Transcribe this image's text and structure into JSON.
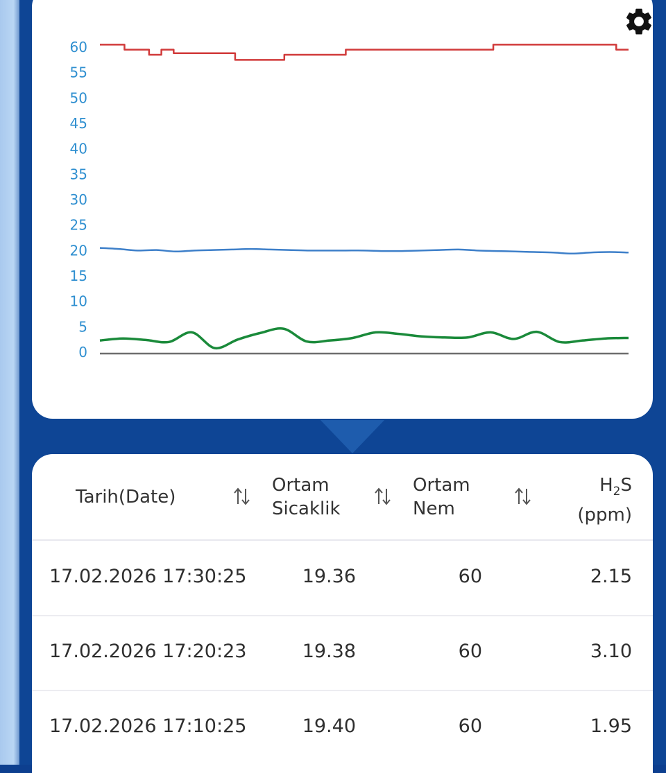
{
  "chart_data": {
    "type": "line",
    "yticks": [
      "60",
      "55",
      "50",
      "45",
      "40",
      "35",
      "30",
      "25",
      "20",
      "15",
      "10",
      "5",
      "0"
    ],
    "ylim": [
      0,
      60
    ],
    "grid": false,
    "series": [
      {
        "color": "#d13a3a",
        "values": [
          60.5,
          60.5,
          59.5,
          59.5,
          58.5,
          59.5,
          58.8,
          58.8,
          58.8,
          58.8,
          58.8,
          57.5,
          57.5,
          57.5,
          57.5,
          58.5,
          58.5,
          58.5,
          58.5,
          58.5,
          59.5,
          59.5,
          59.5,
          59.5,
          59.5,
          59.5,
          59.5,
          59.5,
          59.5,
          59.5,
          59.5,
          59.5,
          60.5,
          60.5,
          60.5,
          60.5,
          60.5,
          60.5,
          60.5,
          60.5,
          60.5,
          60.5,
          59.5,
          59.5
        ]
      },
      {
        "color": "#3d7fc9",
        "values": [
          20.5,
          20.3,
          20.0,
          20.1,
          19.8,
          20.0,
          20.1,
          20.2,
          20.3,
          20.2,
          20.1,
          20.0,
          20.0,
          20.0,
          20.0,
          19.9,
          19.9,
          20.0,
          20.1,
          20.2,
          20.0,
          19.9,
          19.8,
          19.7,
          19.6,
          19.4,
          19.6,
          19.7,
          19.6
        ]
      },
      {
        "color": "#1a8a3a",
        "values": [
          2.3,
          2.7,
          2.4,
          2.0,
          3.9,
          0.8,
          2.5,
          3.8,
          4.6,
          2.1,
          2.3,
          2.8,
          3.9,
          3.6,
          3.1,
          2.9,
          2.9,
          3.9,
          2.6,
          4.0,
          2.0,
          2.3,
          2.7,
          2.8
        ]
      }
    ]
  },
  "table": {
    "headers": {
      "date": "Tarih(Date)",
      "temp_line1": "Ortam",
      "temp_line2": "Sicaklik",
      "hum_line1": "Ortam",
      "hum_line2": "Nem",
      "h2s_main": "H",
      "h2s_sub": "2",
      "h2s_suffix": "S",
      "h2s_unit": "(ppm)"
    },
    "rows": [
      {
        "date": "17.02.2026 17:30:25",
        "temp": "19.36",
        "hum": "60",
        "h2s": "2.15"
      },
      {
        "date": "17.02.2026 17:20:23",
        "temp": "19.38",
        "hum": "60",
        "h2s": "3.10"
      },
      {
        "date": "17.02.2026 17:10:25",
        "temp": "19.40",
        "hum": "60",
        "h2s": "1.95"
      }
    ]
  },
  "icons": {
    "settings": "gear-icon",
    "sort": "sort-arrows-icon"
  },
  "colors": {
    "accent_blue": "#0e4595",
    "tick_blue": "#2f8fd0"
  }
}
